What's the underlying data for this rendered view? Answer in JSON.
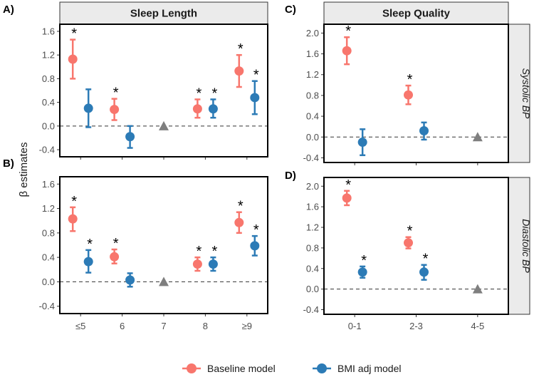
{
  "figure": {
    "ylabel": "β estimates",
    "legend": [
      {
        "name": "Baseline model",
        "color": "#F8766D"
      },
      {
        "name": "BMI adj model",
        "color": "#2C7BB6"
      }
    ],
    "reference_color": "#7f7f7f"
  },
  "chart_data": [
    {
      "panel": "A)",
      "type": "scatter",
      "strip_top": "Sleep Length",
      "strip_side": "",
      "categories": [
        "≤5",
        "6",
        "7",
        "8",
        "≥9"
      ],
      "show_x_ticks": false,
      "yticks": [
        -0.4,
        0.0,
        0.4,
        0.8,
        1.2,
        1.6
      ],
      "ylim": [
        -0.52,
        1.72
      ],
      "reference_category": "7",
      "series": [
        {
          "name": "Baseline model",
          "color": "#F8766D",
          "points": [
            {
              "x": "≤5",
              "est": 1.13,
              "lo": 0.8,
              "hi": 1.46,
              "sig": true
            },
            {
              "x": "6",
              "est": 0.28,
              "lo": 0.1,
              "hi": 0.46,
              "sig": true
            },
            {
              "x": "8",
              "est": 0.29,
              "lo": 0.14,
              "hi": 0.45,
              "sig": true
            },
            {
              "x": "≥9",
              "est": 0.93,
              "lo": 0.66,
              "hi": 1.2,
              "sig": true
            }
          ]
        },
        {
          "name": "BMI adj model",
          "color": "#2C7BB6",
          "points": [
            {
              "x": "≤5",
              "est": 0.3,
              "lo": -0.02,
              "hi": 0.62,
              "sig": false
            },
            {
              "x": "6",
              "est": -0.18,
              "lo": -0.37,
              "hi": 0.0,
              "sig": false
            },
            {
              "x": "8",
              "est": 0.29,
              "lo": 0.14,
              "hi": 0.45,
              "sig": true
            },
            {
              "x": "≥9",
              "est": 0.48,
              "lo": 0.2,
              "hi": 0.76,
              "sig": true
            }
          ]
        }
      ]
    },
    {
      "panel": "B)",
      "type": "scatter",
      "strip_top": "",
      "strip_side": "",
      "categories": [
        "≤5",
        "6",
        "7",
        "8",
        "≥9"
      ],
      "show_x_ticks": true,
      "yticks": [
        -0.4,
        0.0,
        0.4,
        0.8,
        1.2,
        1.6
      ],
      "ylim": [
        -0.52,
        1.72
      ],
      "reference_category": "7",
      "series": [
        {
          "name": "Baseline model",
          "color": "#F8766D",
          "points": [
            {
              "x": "≤5",
              "est": 1.03,
              "lo": 0.83,
              "hi": 1.22,
              "sig": true
            },
            {
              "x": "6",
              "est": 0.41,
              "lo": 0.3,
              "hi": 0.53,
              "sig": true
            },
            {
              "x": "8",
              "est": 0.29,
              "lo": 0.18,
              "hi": 0.4,
              "sig": true
            },
            {
              "x": "≥9",
              "est": 0.97,
              "lo": 0.8,
              "hi": 1.14,
              "sig": true
            }
          ]
        },
        {
          "name": "BMI adj model",
          "color": "#2C7BB6",
          "points": [
            {
              "x": "≤5",
              "est": 0.33,
              "lo": 0.15,
              "hi": 0.52,
              "sig": true
            },
            {
              "x": "6",
              "est": 0.03,
              "lo": -0.08,
              "hi": 0.14,
              "sig": false
            },
            {
              "x": "8",
              "est": 0.29,
              "lo": 0.18,
              "hi": 0.4,
              "sig": true
            },
            {
              "x": "≥9",
              "est": 0.59,
              "lo": 0.43,
              "hi": 0.75,
              "sig": true
            }
          ]
        }
      ]
    },
    {
      "panel": "C)",
      "type": "scatter",
      "strip_top": "Sleep Quality",
      "strip_side": "Systolic BP",
      "categories": [
        "0-1",
        "2-3",
        "4-5"
      ],
      "show_x_ticks": false,
      "yticks": [
        -0.4,
        0.0,
        0.4,
        0.8,
        1.2,
        1.6,
        2.0
      ],
      "ylim": [
        -0.49,
        2.17
      ],
      "reference_category": "4-5",
      "series": [
        {
          "name": "Baseline model",
          "color": "#F8766D",
          "points": [
            {
              "x": "0-1",
              "est": 1.66,
              "lo": 1.4,
              "hi": 1.92,
              "sig": true
            },
            {
              "x": "2-3",
              "est": 0.81,
              "lo": 0.63,
              "hi": 0.99,
              "sig": true
            }
          ]
        },
        {
          "name": "BMI adj model",
          "color": "#2C7BB6",
          "points": [
            {
              "x": "0-1",
              "est": -0.1,
              "lo": -0.35,
              "hi": 0.15,
              "sig": false
            },
            {
              "x": "2-3",
              "est": 0.12,
              "lo": -0.05,
              "hi": 0.28,
              "sig": false
            }
          ]
        }
      ]
    },
    {
      "panel": "D)",
      "type": "scatter",
      "strip_top": "",
      "strip_side": "Diastolic BP",
      "categories": [
        "0-1",
        "2-3",
        "4-5"
      ],
      "show_x_ticks": true,
      "yticks": [
        -0.4,
        0.0,
        0.4,
        0.8,
        1.2,
        1.6,
        2.0
      ],
      "ylim": [
        -0.49,
        2.17
      ],
      "reference_category": "4-5",
      "series": [
        {
          "name": "Baseline model",
          "color": "#F8766D",
          "points": [
            {
              "x": "0-1",
              "est": 1.77,
              "lo": 1.63,
              "hi": 1.91,
              "sig": true
            },
            {
              "x": "2-3",
              "est": 0.9,
              "lo": 0.79,
              "hi": 1.01,
              "sig": true
            }
          ]
        },
        {
          "name": "BMI adj model",
          "color": "#2C7BB6",
          "points": [
            {
              "x": "0-1",
              "est": 0.33,
              "lo": 0.22,
              "hi": 0.44,
              "sig": true
            },
            {
              "x": "2-3",
              "est": 0.33,
              "lo": 0.18,
              "hi": 0.47,
              "sig": true
            }
          ]
        }
      ]
    }
  ]
}
